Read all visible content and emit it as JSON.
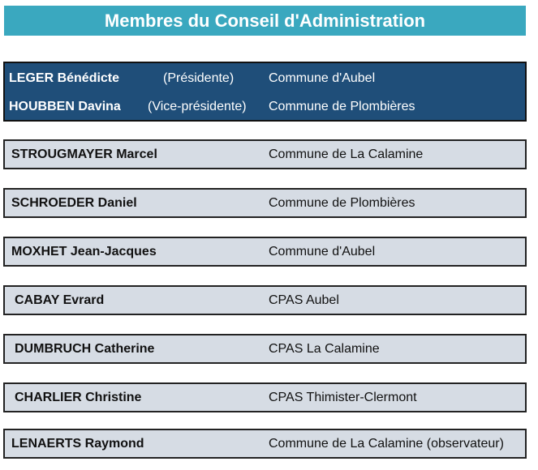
{
  "title": "Membres du Conseil d'Administration",
  "board": [
    {
      "name": "LEGER Bénédicte",
      "role": "(Présidente)",
      "org": "Commune d'Aubel"
    },
    {
      "name": "HOUBBEN Davina",
      "role": "(Vice-présidente)",
      "org": "Commune de Plombières"
    }
  ],
  "members": [
    {
      "name": "STROUGMAYER Marcel",
      "org": "Commune de La Calamine"
    },
    {
      "name": "SCHROEDER Daniel",
      "org": "Commune de Plombières"
    },
    {
      "name": "MOXHET Jean-Jacques",
      "org": "Commune d'Aubel"
    },
    {
      "name": "CABAY Evrard",
      "org": "CPAS Aubel"
    },
    {
      "name": "DUMBRUCH Catherine",
      "org": "CPAS La Calamine"
    },
    {
      "name": "CHARLIER Christine",
      "org": "CPAS Thimister-Clermont"
    },
    {
      "name": "LENAERTS Raymond",
      "org": "Commune de La Calamine (observateur)"
    }
  ],
  "colors": {
    "title_bg": "#3aa8bf",
    "board_bg": "#1f4e79",
    "member_bg": "#d6dce4"
  }
}
